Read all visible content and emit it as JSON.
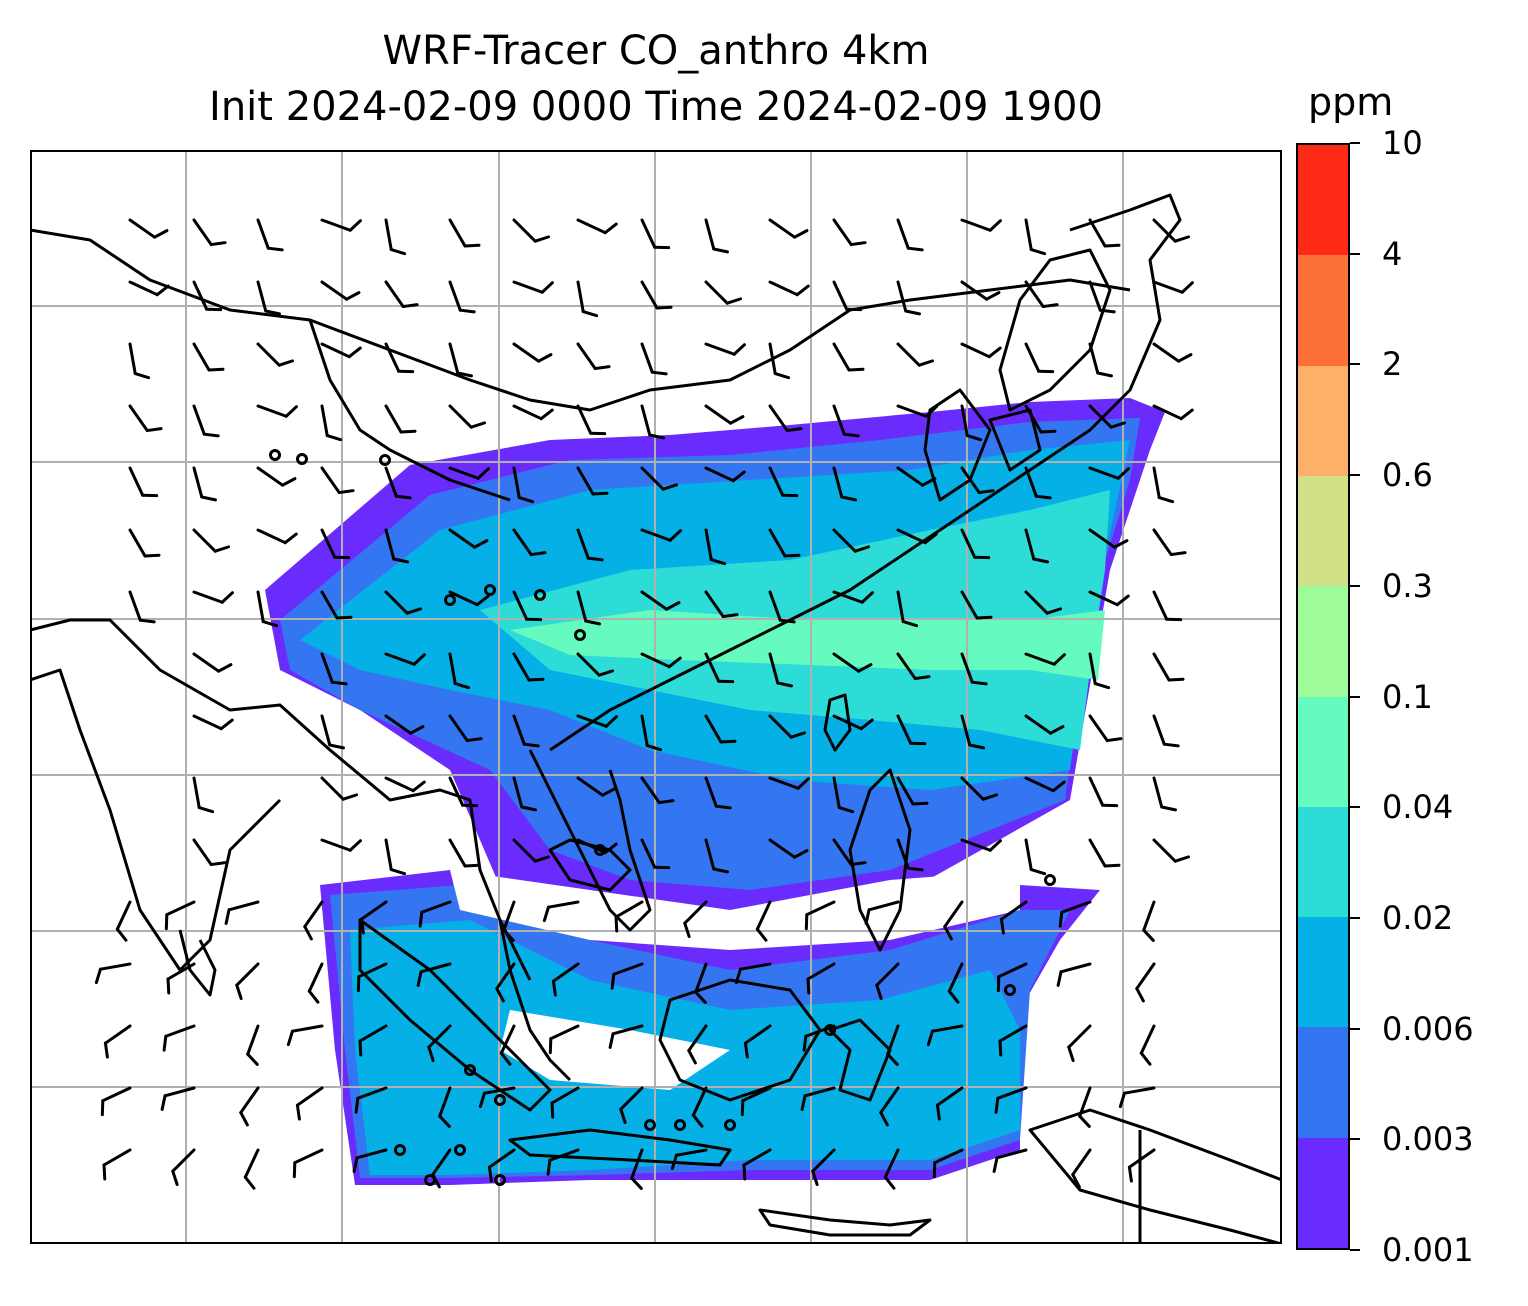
{
  "title": {
    "line1": "WRF-Tracer CO_anthro 4km",
    "line2": "Init 2024-02-09 0000 Time 2024-02-09 1900"
  },
  "colorbar": {
    "unit": "ppm",
    "tick_labels": [
      "0.001",
      "0.003",
      "0.006",
      "0.02",
      "0.04",
      "0.1",
      "0.3",
      "0.6",
      "2",
      "4",
      "10"
    ],
    "colors": [
      "#6a2bfd",
      "#3476f2",
      "#05b0e6",
      "#2ddcd6",
      "#66fbbe",
      "#9dfb9a",
      "#d0e086",
      "#fdb067",
      "#fe7039",
      "#fe2a16"
    ]
  },
  "map": {
    "grid": true,
    "wind_barbs": true,
    "plume_colors": {
      "faint": "#6a2bfd",
      "low": "#3476f2",
      "mid": "#05b0e6",
      "teal": "#2ddcd6",
      "high": "#66fbbe",
      "peak": "#9dfb9a"
    }
  }
}
